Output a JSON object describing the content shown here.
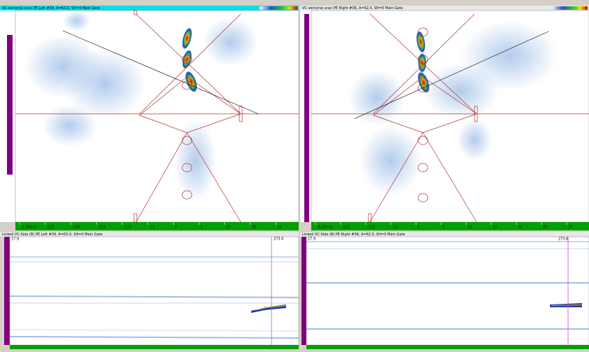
{
  "panels": [
    {
      "title": "VC-sectorial scan PE Left #39, A=63.0, SH=0 Main Gate",
      "ruler": [
        "-1.50mm",
        "-125",
        "-120",
        "-115",
        "-110",
        "-15",
        "0",
        "5",
        "10",
        "15",
        "20"
      ]
    },
    {
      "title": "VC-sectorial scan PE Right #38, A=62.0, SH=0 Main Gate",
      "ruler": [
        "-1.20mm",
        "-115",
        "-110",
        "-15",
        "0",
        "5",
        "10",
        "15",
        "20",
        "25",
        "30"
      ]
    },
    {
      "title": "Linked VC-Side (B) PE Left #39, A=63.0, SH=0 Main Gate",
      "cursor": "273.6",
      "start": "17.9"
    },
    {
      "title": "Linked VC-Side (B) PE Right #38, A=62.0, SH=0 Main Gate",
      "cursor": "273.6",
      "start": "17.9"
    }
  ]
}
